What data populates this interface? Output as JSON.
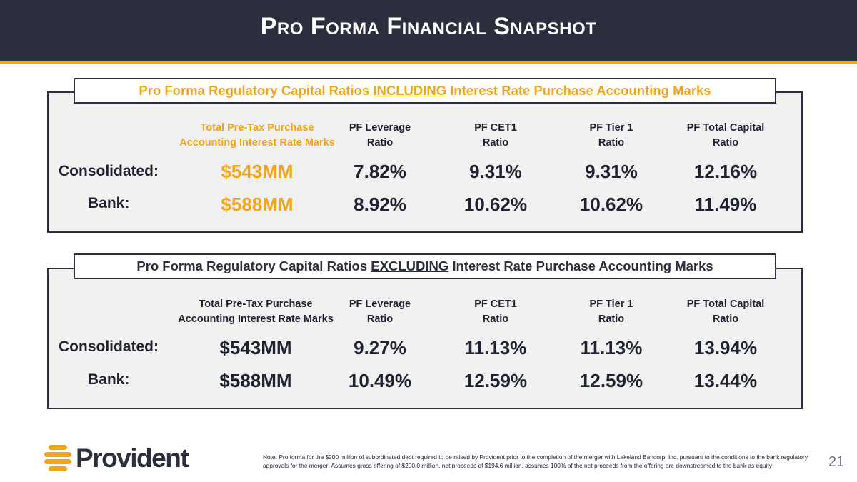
{
  "title": "Pro Forma Financial Snapshot",
  "colors": {
    "navy": "#2b2e3c",
    "accent": "#f2a516",
    "panel": "#f1f1f1"
  },
  "including": {
    "tag_pre": "Pro Forma Regulatory Capital Ratios ",
    "tag_keyword": "INCLUDING",
    "tag_post": " Interest Rate Purchase Accounting Marks",
    "headers": [
      [
        "Total Pre-Tax Purchase",
        "Accounting Interest Rate Marks"
      ],
      [
        "PF Leverage",
        "Ratio"
      ],
      [
        "PF CET1",
        "Ratio"
      ],
      [
        "PF Tier 1",
        "Ratio"
      ],
      [
        "PF Total Capital",
        "Ratio"
      ]
    ],
    "rows": [
      {
        "label": "Consolidated:",
        "values": [
          "$543MM",
          "7.82%",
          "9.31%",
          "9.31%",
          "12.16%"
        ]
      },
      {
        "label": "Bank:",
        "values": [
          "$588MM",
          "8.92%",
          "10.62%",
          "10.62%",
          "11.49%"
        ]
      }
    ]
  },
  "excluding": {
    "tag_pre": "Pro Forma Regulatory Capital Ratios ",
    "tag_keyword": "EXCLUDING",
    "tag_post": " Interest Rate Purchase Accounting Marks",
    "headers": [
      [
        "Total Pre-Tax Purchase",
        "Accounting Interest Rate Marks"
      ],
      [
        "PF Leverage",
        "Ratio"
      ],
      [
        "PF CET1",
        "Ratio"
      ],
      [
        "PF Tier 1",
        "Ratio"
      ],
      [
        "PF Total Capital",
        "Ratio"
      ]
    ],
    "rows": [
      {
        "label": "Consolidated:",
        "values": [
          "$543MM",
          "9.27%",
          "11.13%",
          "11.13%",
          "13.94%"
        ]
      },
      {
        "label": "Bank:",
        "values": [
          "$588MM",
          "10.49%",
          "12.59%",
          "12.59%",
          "13.44%"
        ]
      }
    ]
  },
  "logo": {
    "text": "Provident",
    "icon": "provident-sun-icon"
  },
  "note": "Note: Pro forma for the $200 million of subordinated debt required to be raised by Provident prior to the completion of the merger with Lakeland Bancorp, Inc. pursuant to the conditions to the bank regulatory approvals for the merger; Assumes gross offering of $200.0 million, net proceeds of $194.6 million, assumes 100% of the net proceeds from the offering are downstreamed to the bank as equity",
  "page_number": "21"
}
